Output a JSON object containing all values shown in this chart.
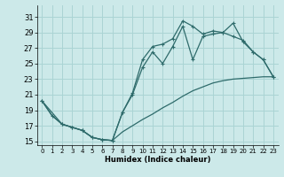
{
  "title": "",
  "xlabel": "Humidex (Indice chaleur)",
  "bg_color": "#cce9e9",
  "grid_color": "#aad4d4",
  "line_color": "#2e6b6b",
  "xlim": [
    -0.5,
    23.5
  ],
  "ylim": [
    14.5,
    32.5
  ],
  "yticks": [
    15,
    17,
    19,
    21,
    23,
    25,
    27,
    29,
    31
  ],
  "xticks": [
    0,
    1,
    2,
    3,
    4,
    5,
    6,
    7,
    8,
    9,
    10,
    11,
    12,
    13,
    14,
    15,
    16,
    17,
    18,
    19,
    20,
    21,
    22,
    23
  ],
  "line1_x": [
    0,
    1,
    2,
    3,
    4,
    5,
    6,
    7,
    8,
    9,
    10,
    11,
    12,
    13,
    14,
    15,
    16,
    17,
    18,
    19,
    20,
    21,
    22,
    23
  ],
  "line1_y": [
    20.2,
    18.3,
    17.2,
    16.8,
    16.4,
    15.5,
    15.2,
    15.1,
    18.7,
    21.2,
    25.5,
    27.2,
    27.5,
    28.2,
    30.5,
    29.8,
    28.8,
    29.2,
    29.0,
    28.5,
    28.0,
    26.5,
    25.5,
    23.3
  ],
  "line2_x": [
    0,
    2,
    3,
    4,
    5,
    6,
    7,
    8,
    9,
    10,
    11,
    12,
    13,
    14,
    15,
    16,
    17,
    18,
    19,
    20,
    21,
    22,
    23
  ],
  "line2_y": [
    20.2,
    17.2,
    16.8,
    16.4,
    15.5,
    15.2,
    15.1,
    18.7,
    21.0,
    24.5,
    26.5,
    25.0,
    27.2,
    29.8,
    25.5,
    28.5,
    28.8,
    29.0,
    30.2,
    27.8,
    26.5,
    25.5,
    23.3
  ],
  "line3_x": [
    0,
    1,
    2,
    3,
    4,
    5,
    6,
    7,
    8,
    9,
    10,
    11,
    12,
    13,
    14,
    15,
    16,
    17,
    18,
    19,
    20,
    21,
    22,
    23
  ],
  "line3_y": [
    20.2,
    18.3,
    17.2,
    16.8,
    16.4,
    15.5,
    15.2,
    15.1,
    16.2,
    17.0,
    17.8,
    18.5,
    19.3,
    20.0,
    20.8,
    21.5,
    22.0,
    22.5,
    22.8,
    23.0,
    23.1,
    23.2,
    23.3,
    23.3
  ]
}
